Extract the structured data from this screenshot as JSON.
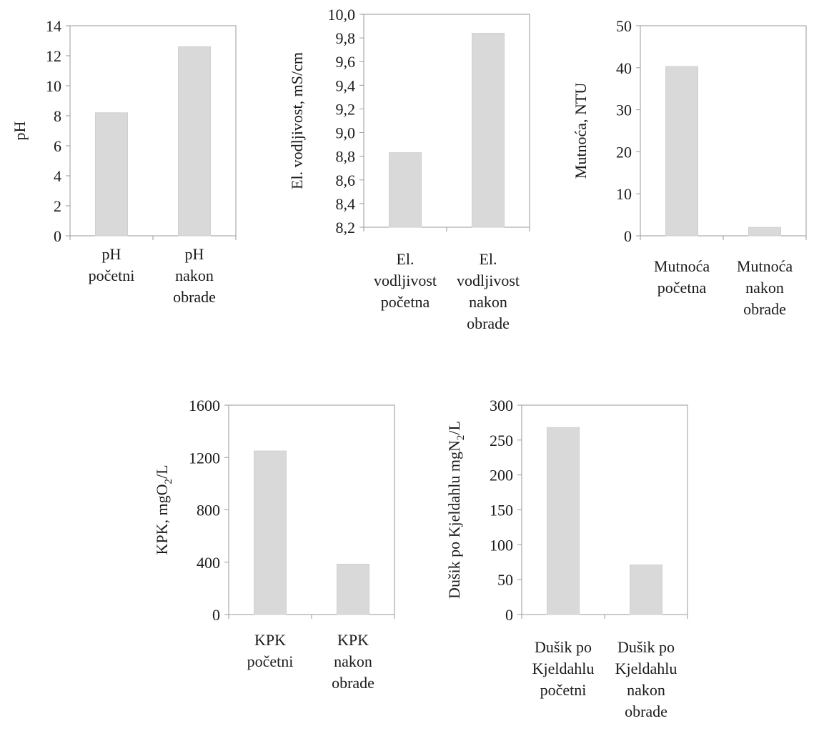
{
  "chart_data": [
    {
      "type": "bar",
      "categories": [
        [
          "pH",
          "početni"
        ],
        [
          "pH",
          "nakon",
          "obrade"
        ]
      ],
      "values": [
        8.2,
        12.6
      ],
      "ylabel": "pH",
      "ylim": [
        0,
        14
      ],
      "yticks": [
        "0",
        "2",
        "4",
        "6",
        "8",
        "10",
        "12",
        "14"
      ],
      "grid": false,
      "bar_color": "#d9d9d9"
    },
    {
      "type": "bar",
      "categories": [
        [
          "El.",
          "vodljivost",
          "početna"
        ],
        [
          "El.",
          "vodljivost",
          "nakon",
          "obrade"
        ]
      ],
      "values": [
        8.83,
        9.84
      ],
      "ylabel": "El. vodljivost, mS/cm",
      "ylim": [
        8.2,
        10.0
      ],
      "yticks": [
        "8,2",
        "8,4",
        "8,6",
        "8,8",
        "9,0",
        "9,2",
        "9,4",
        "9,6",
        "9,8",
        "10,0"
      ],
      "grid": false,
      "bar_color": "#d9d9d9"
    },
    {
      "type": "bar",
      "categories": [
        [
          "Mutnoća",
          "početna"
        ],
        [
          "Mutnoća",
          "nakon",
          "obrade"
        ]
      ],
      "values": [
        40.3,
        2.0
      ],
      "ylabel": "Mutnoća,  NTU",
      "ylim": [
        0,
        50
      ],
      "yticks": [
        "0",
        "10",
        "20",
        "30",
        "40",
        "50"
      ],
      "grid": false,
      "bar_color": "#d9d9d9"
    },
    {
      "type": "bar",
      "categories": [
        [
          "KPK",
          "početni"
        ],
        [
          "KPK",
          "nakon",
          "obrade"
        ]
      ],
      "values": [
        1250,
        385
      ],
      "ylabel": "KPK, mgO",
      "ylabel_sub": "2",
      "ylabel_tail": "/L",
      "ylim": [
        0,
        1600
      ],
      "yticks": [
        "0",
        "400",
        "800",
        "1200",
        "1600"
      ],
      "grid": false,
      "bar_color": "#d9d9d9"
    },
    {
      "type": "bar",
      "categories": [
        [
          "Dušik po",
          "Kjeldahlu",
          "početni"
        ],
        [
          "Dušik po",
          "Kjeldahlu",
          "nakon",
          "obrade"
        ]
      ],
      "values": [
        268,
        71
      ],
      "ylabel": "Dušik po Kjeldahlu mgN",
      "ylabel_sub": "2",
      "ylabel_tail": "/L",
      "ylim": [
        0,
        300
      ],
      "yticks": [
        "0",
        "50",
        "100",
        "150",
        "200",
        "250",
        "300"
      ],
      "grid": false,
      "bar_color": "#d9d9d9"
    }
  ]
}
